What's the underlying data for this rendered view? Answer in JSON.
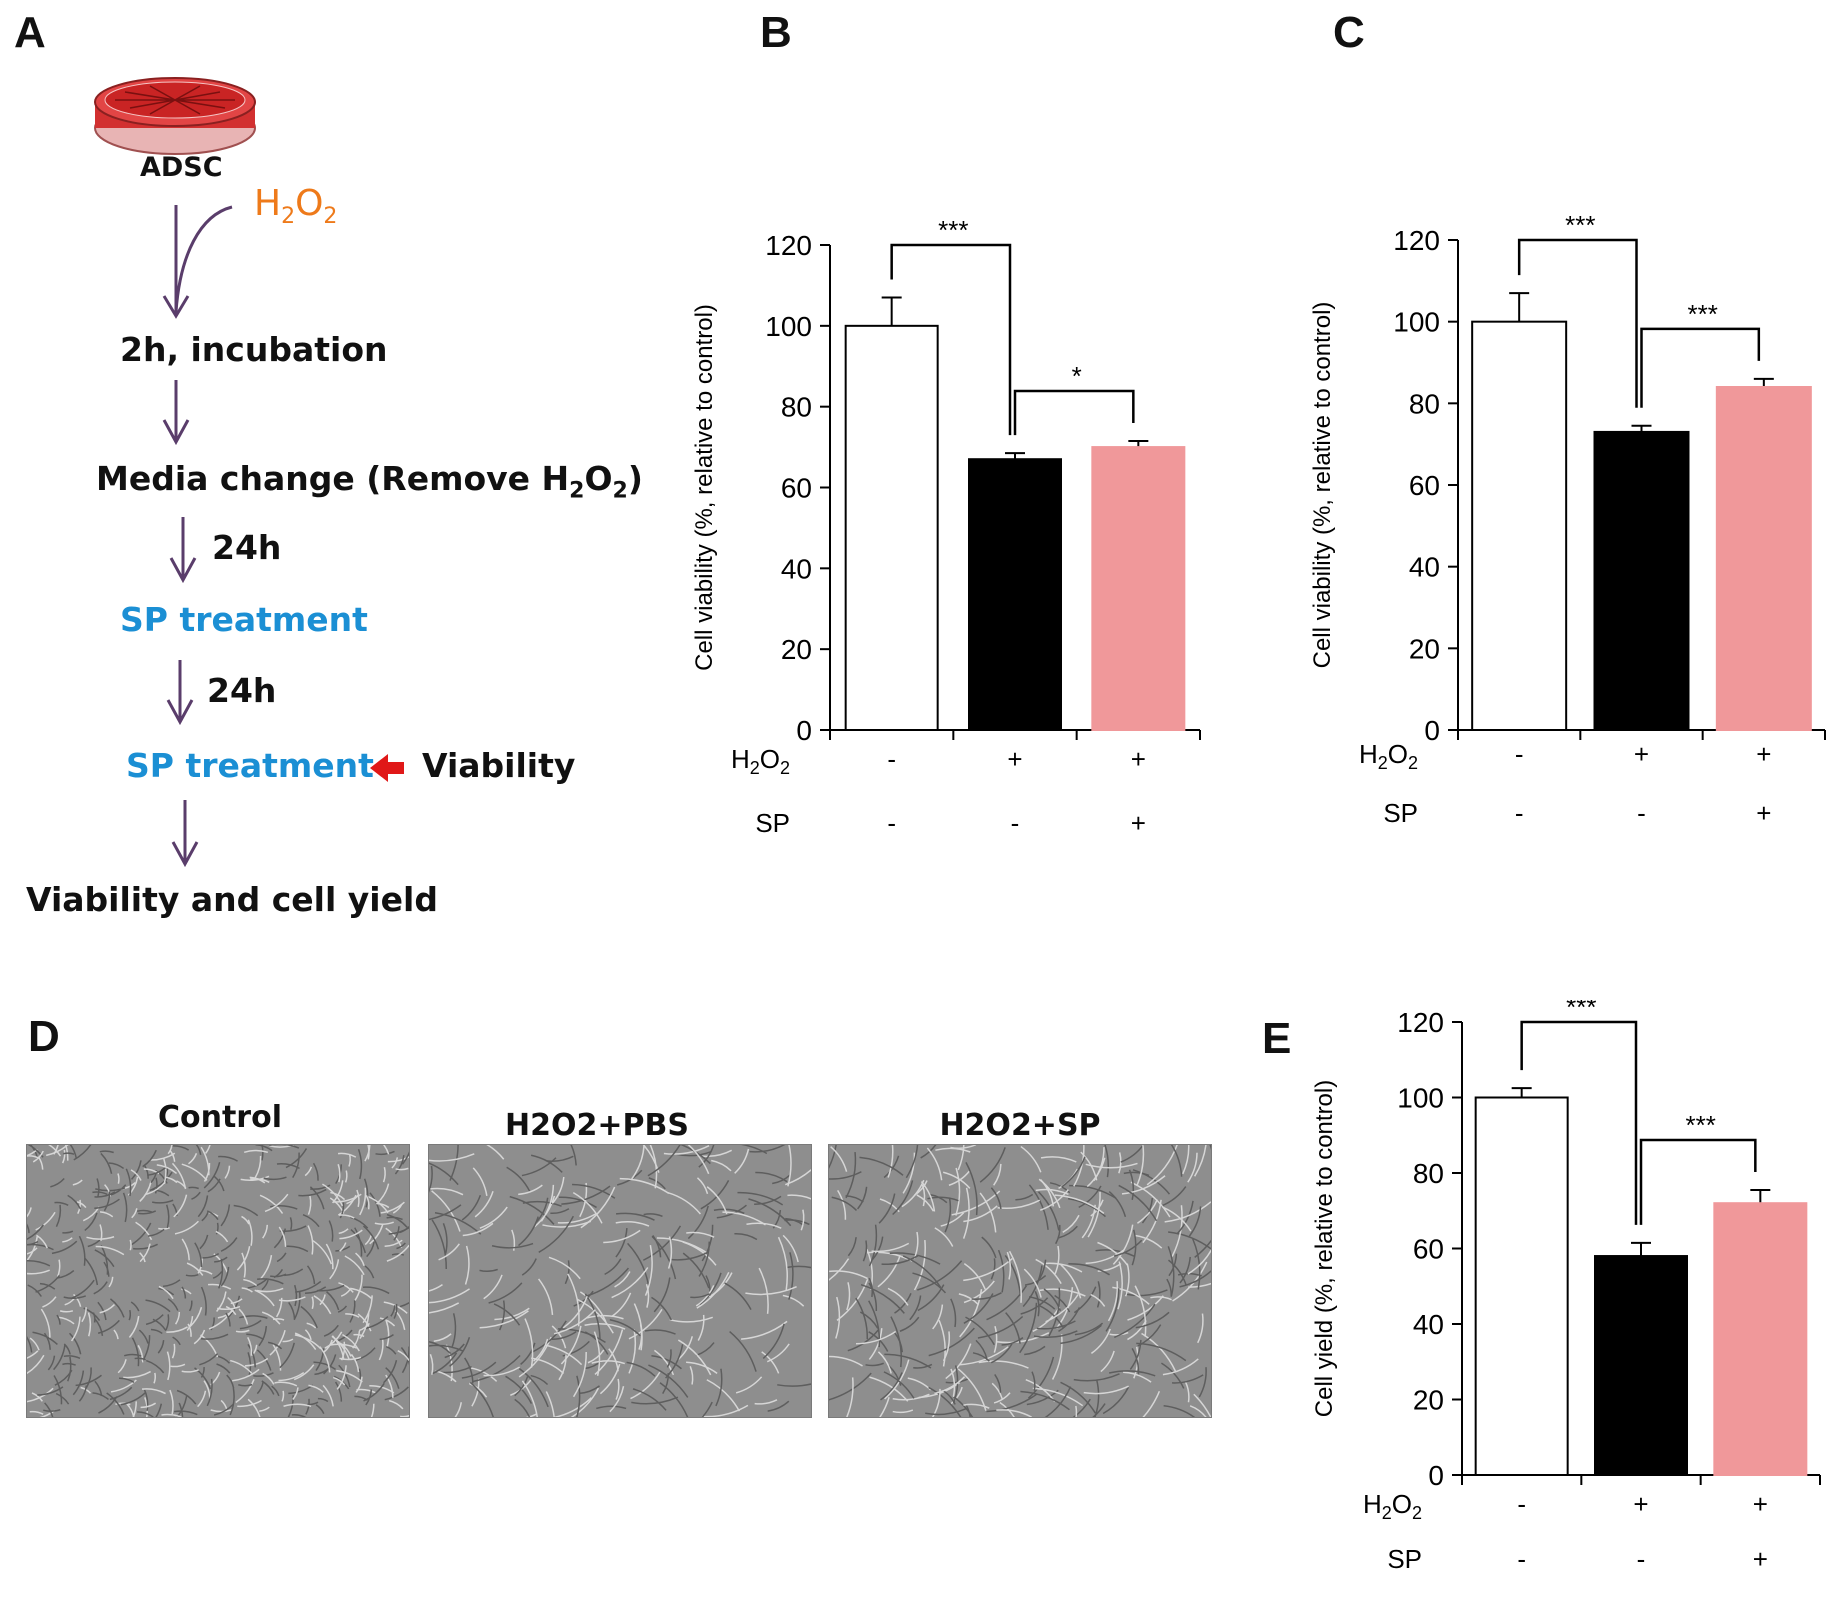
{
  "panels": {
    "a": "A",
    "b": "B",
    "c": "C",
    "d": "D",
    "e": "E"
  },
  "flow": {
    "adsc": "ADSC",
    "h2o2_main": "H",
    "h2o2_sub1": "2",
    "h2o2_mid": "O",
    "h2o2_sub2": "2",
    "step1": "2h, incubation",
    "step2_pre": "Media change (Remove H",
    "step2_sub1": "2",
    "step2_mid": "O",
    "step2_sub2": "2",
    "step2_post": ")",
    "t1": "24h",
    "step3": "SP treatment",
    "t2": "24h",
    "step4": "SP treatment",
    "viability": "Viability",
    "final": "Viability and cell yield"
  },
  "micrographs": {
    "labels": [
      "Control",
      "H2O2+PBS",
      "H2O2+SP"
    ]
  },
  "colors": {
    "control": "#ffffff",
    "h2o2": "#000000",
    "sp": "#f0989a",
    "arrow": "#5a3d6b",
    "red_arrow": "#e01818"
  },
  "row_labels": {
    "h2o2_main": "H",
    "h2o2_sub": "2",
    "h2o2_o": "O",
    "h2o2_sub2": "2",
    "sp": "SP"
  },
  "chart_data": [
    {
      "id": "B",
      "type": "bar",
      "ylabel": "Cell viability (%, relative to control)",
      "ylim": [
        0,
        120
      ],
      "yticks": [
        0,
        20,
        40,
        60,
        80,
        100,
        120
      ],
      "values": [
        100,
        67,
        70
      ],
      "errors": [
        7,
        1.5,
        1.5
      ],
      "h2o2": [
        "-",
        "+",
        "+"
      ],
      "sp": [
        "-",
        "-",
        "+"
      ],
      "sig": [
        {
          "from": 0,
          "to": 1,
          "label": "***"
        },
        {
          "from": 1,
          "to": 2,
          "label": "*"
        }
      ]
    },
    {
      "id": "C",
      "type": "bar",
      "ylabel": "Cell viability (%, relative to control)",
      "ylim": [
        0,
        120
      ],
      "yticks": [
        0,
        20,
        40,
        60,
        80,
        100,
        120
      ],
      "values": [
        100,
        73,
        84
      ],
      "errors": [
        7,
        1.5,
        2
      ],
      "h2o2": [
        "-",
        "+",
        "+"
      ],
      "sp": [
        "-",
        "-",
        "+"
      ],
      "sig": [
        {
          "from": 0,
          "to": 1,
          "label": "***"
        },
        {
          "from": 1,
          "to": 2,
          "label": "***"
        }
      ]
    },
    {
      "id": "E",
      "type": "bar",
      "ylabel": "Cell yield (%, relative to control)",
      "ylim": [
        0,
        120
      ],
      "yticks": [
        0,
        20,
        40,
        60,
        80,
        100,
        120
      ],
      "values": [
        100,
        58,
        72
      ],
      "errors": [
        2.5,
        3.5,
        3.5
      ],
      "h2o2": [
        "-",
        "+",
        "+"
      ],
      "sp": [
        "-",
        "-",
        "+"
      ],
      "sig": [
        {
          "from": 0,
          "to": 1,
          "label": "***"
        },
        {
          "from": 1,
          "to": 2,
          "label": "***"
        }
      ]
    }
  ]
}
